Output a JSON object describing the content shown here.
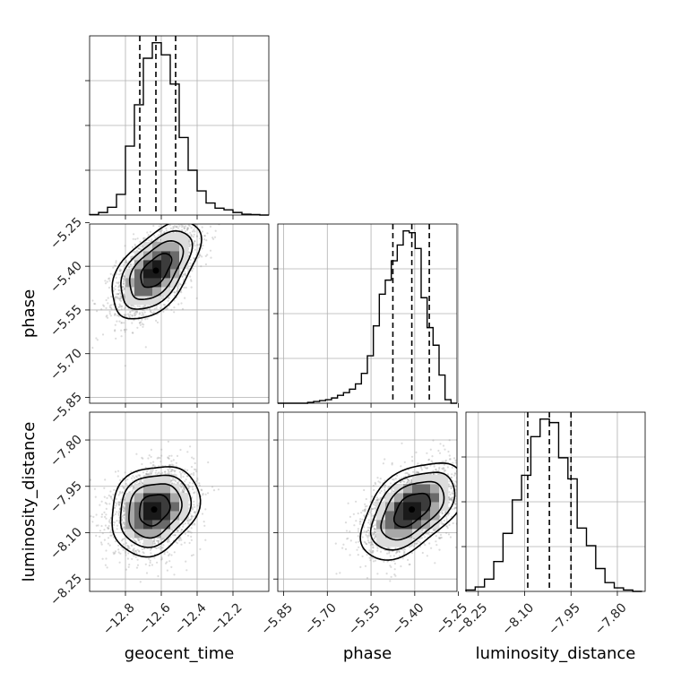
{
  "chart_data": {
    "type": "corner",
    "parameters": [
      "geocent_time",
      "phase",
      "luminosity_distance"
    ],
    "ranges": {
      "geocent_time": [
        -13.0,
        -12.0
      ],
      "phase": [
        -5.87,
        -5.255
      ],
      "luminosity_distance": [
        -8.29,
        -7.71
      ]
    },
    "ticks": {
      "geocent_time": [
        -12.8,
        -12.6,
        -12.4,
        -12.2
      ],
      "phase": [
        -5.85,
        -5.7,
        -5.55,
        -5.4,
        -5.25
      ],
      "luminosity_distance": [
        -8.25,
        -8.1,
        -7.95,
        -7.8
      ]
    },
    "tick_labels": {
      "geocent_time": [
        "−12.8",
        "−12.6",
        "−12.4",
        "−12.2"
      ],
      "phase": [
        "−5.85",
        "−5.70",
        "−5.55",
        "−5.40",
        "−5.25"
      ],
      "luminosity_distance": [
        "−8.25",
        "−8.10",
        "−7.95",
        "−7.80"
      ]
    },
    "axis_labels": {
      "geocent_time": "geocent_time",
      "phase": "phase",
      "luminosity_distance": "luminosity_distance"
    },
    "quantiles": {
      "geocent_time": [
        -12.72,
        -12.63,
        -12.52
      ],
      "phase": [
        -5.475,
        -5.41,
        -5.35
      ],
      "luminosity_distance": [
        -8.09,
        -8.02,
        -7.95
      ]
    },
    "histograms": {
      "geocent_time": {
        "edges": [
          -13.0,
          -12.95,
          -12.9,
          -12.85,
          -12.8,
          -12.75,
          -12.7,
          -12.65,
          -12.6,
          -12.55,
          -12.5,
          -12.45,
          -12.4,
          -12.35,
          -12.3,
          -12.25,
          -12.2,
          -12.15,
          -12.1,
          -12.05,
          -12.0
        ],
        "counts": [
          0.3,
          1.5,
          4.5,
          12,
          40,
          64,
          91,
          100,
          93,
          76,
          45,
          26,
          14,
          7,
          4,
          3,
          1.5,
          0.5,
          0.3,
          0
        ]
      },
      "phase": {
        "edges": [
          -5.87,
          -5.8495,
          -5.829,
          -5.8085,
          -5.788,
          -5.7675,
          -5.747,
          -5.7265,
          -5.706,
          -5.6855,
          -5.665,
          -5.6445,
          -5.624,
          -5.6035,
          -5.583,
          -5.5625,
          -5.542,
          -5.5215,
          -5.501,
          -5.4805,
          -5.46,
          -5.4395,
          -5.419,
          -5.3985,
          -5.378,
          -5.3575,
          -5.337,
          -5.3165,
          -5.296,
          -5.2755,
          -5.255
        ],
        "counts": [
          0,
          0,
          0,
          0,
          0,
          0.5,
          1,
          1.5,
          2,
          3,
          4.5,
          6,
          8,
          11,
          17,
          27,
          44,
          62,
          70,
          81,
          90,
          98,
          97,
          88,
          60,
          43,
          33,
          16,
          2,
          0
        ]
      },
      "luminosity_distance": {
        "edges": [
          -8.29,
          -8.26,
          -8.23,
          -8.2,
          -8.17,
          -8.14,
          -8.11,
          -8.08,
          -8.05,
          -8.02,
          -7.99,
          -7.96,
          -7.93,
          -7.9,
          -7.87,
          -7.84,
          -7.81,
          -7.78,
          -7.75,
          -7.72
        ],
        "counts": [
          0.8,
          2.5,
          7,
          17,
          33,
          52,
          66,
          88,
          98,
          96,
          76,
          64,
          36,
          26,
          13,
          5,
          2,
          0.8,
          0
        ]
      }
    },
    "joint": [
      {
        "x": "geocent_time",
        "y": "phase",
        "center": [
          -12.63,
          -5.415
        ],
        "sigma": [
          0.11,
          0.075
        ],
        "rho": 0.55
      },
      {
        "x": "geocent_time",
        "y": "luminosity_distance",
        "center": [
          -12.64,
          -8.025
        ],
        "sigma": [
          0.11,
          0.065
        ],
        "rho": 0.2
      },
      {
        "x": "phase",
        "y": "luminosity_distance",
        "center": [
          -5.41,
          -8.025
        ],
        "sigma": [
          0.08,
          0.07
        ],
        "rho": 0.5
      }
    ],
    "grid": true
  }
}
